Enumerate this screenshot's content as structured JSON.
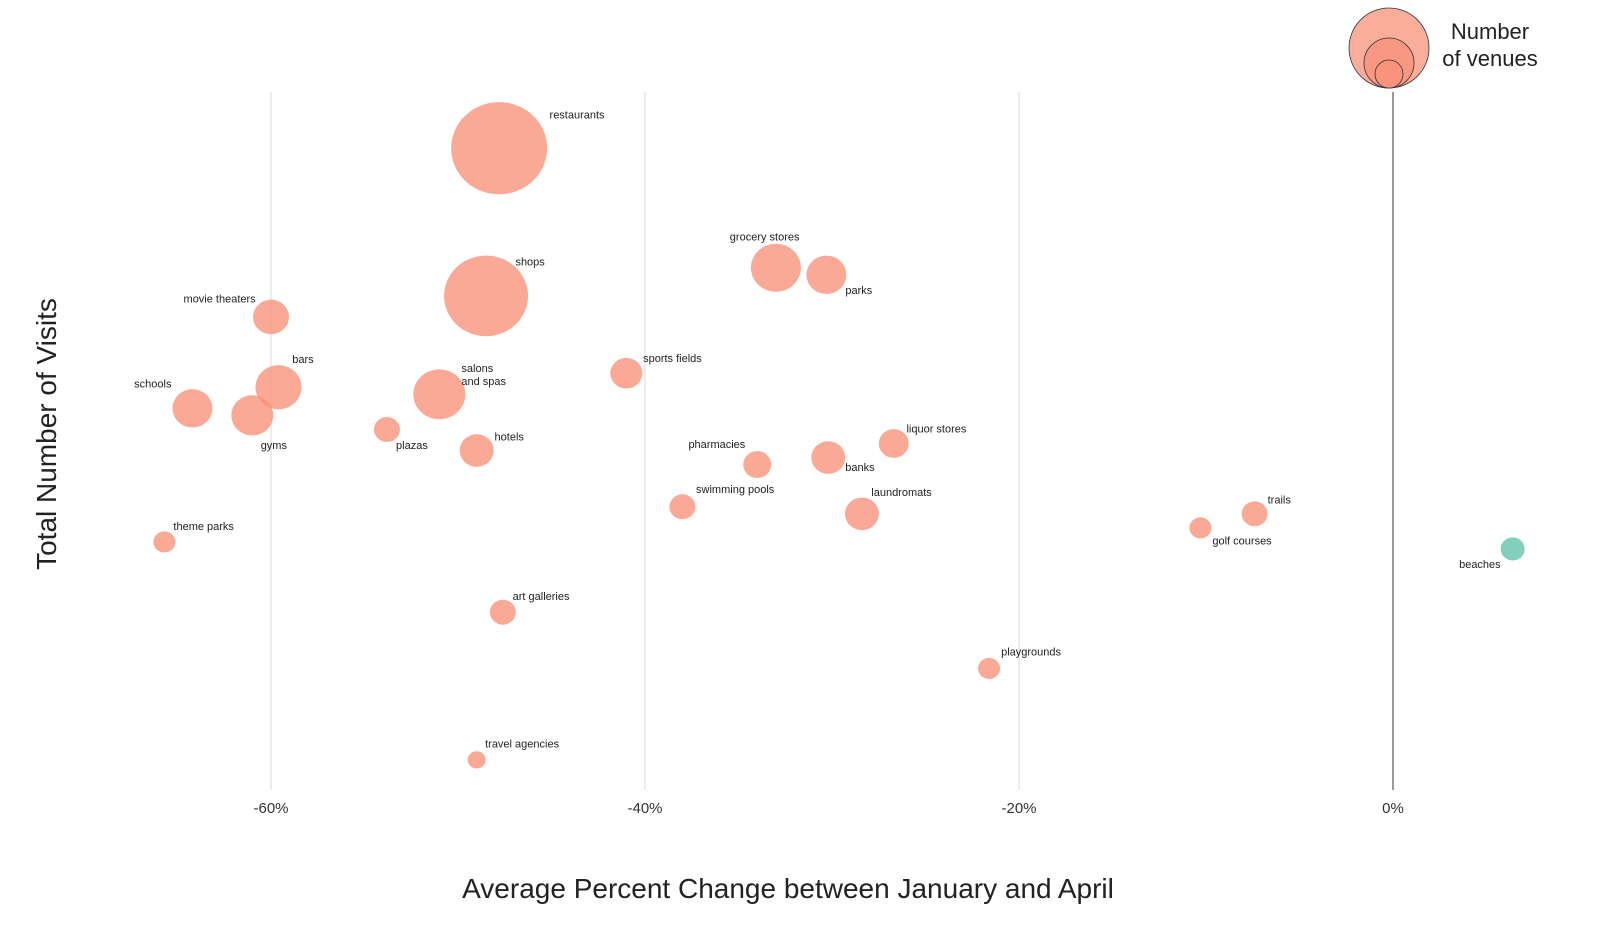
{
  "chart_data": {
    "type": "scatter",
    "subtype": "bubble",
    "xlabel": "Average Percent Change between January and April",
    "ylabel": "Total Number of Visits",
    "xlim": [
      -67,
      6
    ],
    "x_ticks": [
      {
        "value": -60,
        "label": "-60%"
      },
      {
        "value": -40,
        "label": "-40%"
      },
      {
        "value": -20,
        "label": "-20%"
      },
      {
        "value": 0,
        "label": "0%"
      }
    ],
    "grid": "vertical",
    "legend": {
      "title_lines": [
        "Number",
        "of venues"
      ],
      "placement": "top-right",
      "encoding": "bubble size"
    },
    "colors": {
      "decrease": "#F8917A",
      "increase": "#6CC7B0",
      "grid": "#d9d9d9",
      "zero_line": "#9a9a9a"
    },
    "points": [
      {
        "name": "restaurants",
        "x": -47.8,
        "y": 92,
        "size": 48,
        "color": "decrease"
      },
      {
        "name": "shops",
        "x": -48.5,
        "y": 71,
        "size": 42,
        "color": "decrease"
      },
      {
        "name": "grocery stores",
        "x": -33.0,
        "y": 75,
        "size": 25,
        "color": "decrease"
      },
      {
        "name": "parks",
        "x": -30.3,
        "y": 74,
        "size": 20,
        "color": "decrease"
      },
      {
        "name": "movie theaters",
        "x": -60.0,
        "y": 68,
        "size": 18,
        "color": "decrease"
      },
      {
        "name": "sports fields",
        "x": -41.0,
        "y": 60,
        "size": 16,
        "color": "decrease"
      },
      {
        "name": "bars",
        "x": -59.6,
        "y": 58,
        "size": 23,
        "color": "decrease"
      },
      {
        "name": "salons and spas",
        "x": -51.0,
        "y": 57,
        "size": 26,
        "color": "decrease"
      },
      {
        "name": "schools",
        "x": -64.2,
        "y": 55,
        "size": 20,
        "color": "decrease"
      },
      {
        "name": "gyms",
        "x": -61.0,
        "y": 54,
        "size": 21,
        "color": "decrease"
      },
      {
        "name": "plazas",
        "x": -53.8,
        "y": 52,
        "size": 13,
        "color": "decrease"
      },
      {
        "name": "hotels",
        "x": -49.0,
        "y": 49,
        "size": 17,
        "color": "decrease"
      },
      {
        "name": "liquor stores",
        "x": -26.7,
        "y": 50,
        "size": 15,
        "color": "decrease"
      },
      {
        "name": "pharmacies",
        "x": -34.0,
        "y": 47,
        "size": 14,
        "color": "decrease"
      },
      {
        "name": "banks",
        "x": -30.2,
        "y": 48,
        "size": 17,
        "color": "decrease"
      },
      {
        "name": "swimming pools",
        "x": -38.0,
        "y": 41,
        "size": 13,
        "color": "decrease"
      },
      {
        "name": "laundromats",
        "x": -28.4,
        "y": 40,
        "size": 17,
        "color": "decrease"
      },
      {
        "name": "trails",
        "x": -7.4,
        "y": 40,
        "size": 13,
        "color": "decrease"
      },
      {
        "name": "golf courses",
        "x": -10.3,
        "y": 38,
        "size": 11,
        "color": "decrease"
      },
      {
        "name": "beaches",
        "x": 6.4,
        "y": 35,
        "size": 12,
        "color": "increase"
      },
      {
        "name": "theme parks",
        "x": -65.7,
        "y": 36,
        "size": 11,
        "color": "decrease"
      },
      {
        "name": "art galleries",
        "x": -47.6,
        "y": 26,
        "size": 13,
        "color": "decrease"
      },
      {
        "name": "playgrounds",
        "x": -21.6,
        "y": 18,
        "size": 11,
        "color": "decrease"
      },
      {
        "name": "travel agencies",
        "x": -49.0,
        "y": 5,
        "size": 9,
        "color": "decrease"
      }
    ]
  }
}
